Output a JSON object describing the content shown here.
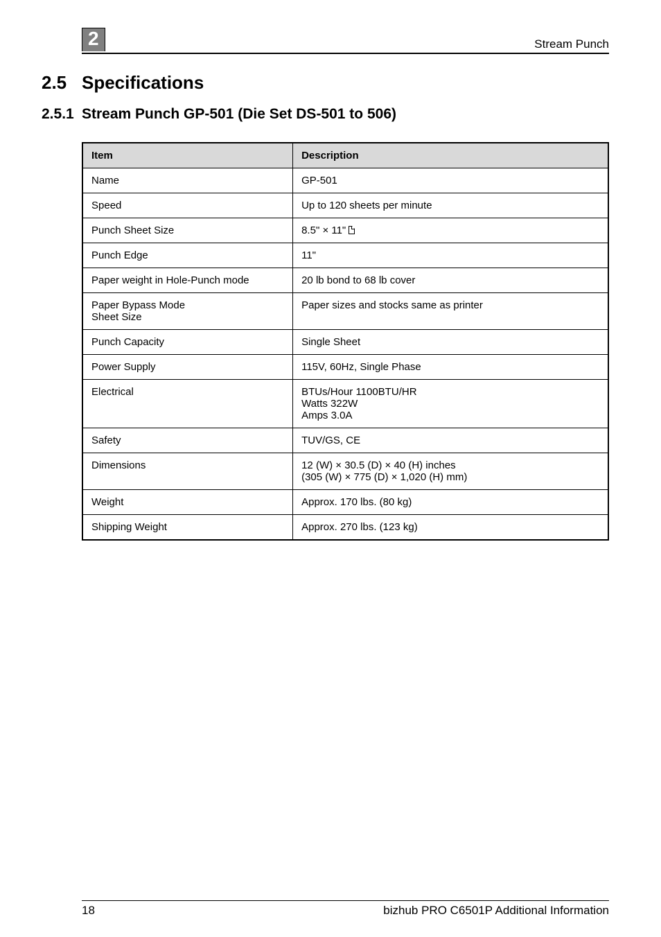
{
  "header": {
    "section_number": "2",
    "running_head": "Stream Punch"
  },
  "headings": {
    "h1_num": "2.5",
    "h1_text": "Specifications",
    "h2_num": "2.5.1",
    "h2_text": "Stream Punch GP-501 (Die Set DS-501 to 506)"
  },
  "table": {
    "columns": [
      "Item",
      "Description"
    ],
    "rows": [
      {
        "item": "Name",
        "desc": "GP-501"
      },
      {
        "item": "Speed",
        "desc": "Up to 120 sheets per minute"
      },
      {
        "item": "Punch Sheet Size",
        "desc": "8.5\" × 11\"",
        "icon": "portrait"
      },
      {
        "item": "Punch Edge",
        "desc": "11\""
      },
      {
        "item": "Paper weight in Hole-Punch mode",
        "desc": "20 lb bond to 68 lb cover"
      },
      {
        "item": "Paper Bypass Mode\nSheet Size",
        "desc": "Paper sizes and stocks same as printer"
      },
      {
        "item": "Punch Capacity",
        "desc": "Single Sheet"
      },
      {
        "item": "Power Supply",
        "desc": "115V, 60Hz, Single Phase"
      },
      {
        "item": "Electrical",
        "desc": "BTUs/Hour 1100BTU/HR\nWatts 322W\nAmps 3.0A"
      },
      {
        "item": "Safety",
        "desc": "TUV/GS, CE"
      },
      {
        "item": "Dimensions",
        "desc": "12 (W) × 30.5 (D) × 40 (H) inches\n(305 (W) × 775 (D) × 1,020 (H) mm)"
      },
      {
        "item": "Weight",
        "desc": "Approx. 170 lbs. (80 kg)"
      },
      {
        "item": "Shipping Weight",
        "desc": "Approx. 270 lbs. (123 kg)"
      }
    ]
  },
  "footer": {
    "page": "18",
    "doc": "bizhub PRO C6501P Additional Information"
  }
}
